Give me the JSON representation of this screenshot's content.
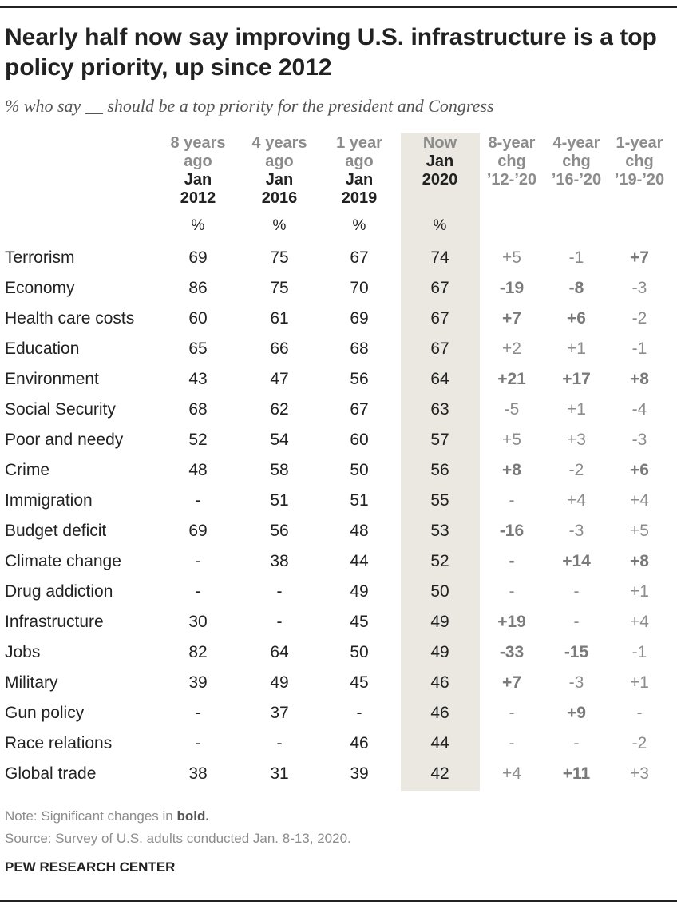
{
  "title": "Nearly half now say improving U.S. infrastructure is a top policy priority, up since 2012",
  "subtitle": "% who say __ should be a top priority for the president and Congress",
  "columns": [
    {
      "gray": "8 years ago",
      "date": "Jan 2012"
    },
    {
      "gray": "4 years ago",
      "date": "Jan 2016"
    },
    {
      "gray": "1 year ago",
      "date": "Jan 2019"
    },
    {
      "gray": "Now",
      "date": "Jan 2020"
    },
    {
      "gray": "8-year chg ’12-’20",
      "date": ""
    },
    {
      "gray": "4-year chg ’16-’20",
      "date": ""
    },
    {
      "gray": "1-year chg ’19-’20",
      "date": ""
    }
  ],
  "pct_symbol": "%",
  "chart_data": {
    "type": "table",
    "title": "Nearly half now say improving U.S. infrastructure is a top policy priority, up since 2012",
    "columns": [
      "Jan 2012",
      "Jan 2016",
      "Jan 2019",
      "Jan 2020",
      "8-year chg ’12-’20",
      "4-year chg ’16-’20",
      "1-year chg ’19-’20"
    ],
    "rows": [
      {
        "label": "Terrorism",
        "values": [
          "69",
          "75",
          "67",
          "74"
        ],
        "changes": [
          {
            "v": "+5",
            "b": false
          },
          {
            "v": "-1",
            "b": false
          },
          {
            "v": "+7",
            "b": true
          }
        ]
      },
      {
        "label": "Economy",
        "values": [
          "86",
          "75",
          "70",
          "67"
        ],
        "changes": [
          {
            "v": "-19",
            "b": true
          },
          {
            "v": "-8",
            "b": true
          },
          {
            "v": "-3",
            "b": false
          }
        ]
      },
      {
        "label": "Health care costs",
        "values": [
          "60",
          "61",
          "69",
          "67"
        ],
        "changes": [
          {
            "v": "+7",
            "b": true
          },
          {
            "v": "+6",
            "b": true
          },
          {
            "v": "-2",
            "b": false
          }
        ]
      },
      {
        "label": "Education",
        "values": [
          "65",
          "66",
          "68",
          "67"
        ],
        "changes": [
          {
            "v": "+2",
            "b": false
          },
          {
            "v": "+1",
            "b": false
          },
          {
            "v": "-1",
            "b": false
          }
        ]
      },
      {
        "label": "Environment",
        "values": [
          "43",
          "47",
          "56",
          "64"
        ],
        "changes": [
          {
            "v": "+21",
            "b": true
          },
          {
            "v": "+17",
            "b": true
          },
          {
            "v": "+8",
            "b": true
          }
        ]
      },
      {
        "label": "Social Security",
        "values": [
          "68",
          "62",
          "67",
          "63"
        ],
        "changes": [
          {
            "v": "-5",
            "b": false
          },
          {
            "v": "+1",
            "b": false
          },
          {
            "v": "-4",
            "b": false
          }
        ]
      },
      {
        "label": "Poor and needy",
        "values": [
          "52",
          "54",
          "60",
          "57"
        ],
        "changes": [
          {
            "v": "+5",
            "b": false
          },
          {
            "v": "+3",
            "b": false
          },
          {
            "v": "-3",
            "b": false
          }
        ]
      },
      {
        "label": "Crime",
        "values": [
          "48",
          "58",
          "50",
          "56"
        ],
        "changes": [
          {
            "v": "+8",
            "b": true
          },
          {
            "v": "-2",
            "b": false
          },
          {
            "v": "+6",
            "b": true
          }
        ]
      },
      {
        "label": "Immigration",
        "values": [
          "-",
          "51",
          "51",
          "55"
        ],
        "changes": [
          {
            "v": "-",
            "b": false
          },
          {
            "v": "+4",
            "b": false
          },
          {
            "v": "+4",
            "b": false
          }
        ]
      },
      {
        "label": "Budget deficit",
        "values": [
          "69",
          "56",
          "48",
          "53"
        ],
        "changes": [
          {
            "v": "-16",
            "b": true
          },
          {
            "v": "-3",
            "b": false
          },
          {
            "v": "+5",
            "b": false
          }
        ]
      },
      {
        "label": "Climate change",
        "values": [
          "-",
          "38",
          "44",
          "52"
        ],
        "changes": [
          {
            "v": "-",
            "b": true
          },
          {
            "v": "+14",
            "b": true
          },
          {
            "v": "+8",
            "b": true
          }
        ]
      },
      {
        "label": "Drug addiction",
        "values": [
          "-",
          "-",
          "49",
          "50"
        ],
        "changes": [
          {
            "v": "-",
            "b": false
          },
          {
            "v": "-",
            "b": false
          },
          {
            "v": "+1",
            "b": false
          }
        ]
      },
      {
        "label": "Infrastructure",
        "values": [
          "30",
          "-",
          "45",
          "49"
        ],
        "changes": [
          {
            "v": "+19",
            "b": true
          },
          {
            "v": "-",
            "b": false
          },
          {
            "v": "+4",
            "b": false
          }
        ]
      },
      {
        "label": "Jobs",
        "values": [
          "82",
          "64",
          "50",
          "49"
        ],
        "changes": [
          {
            "v": "-33",
            "b": true
          },
          {
            "v": "-15",
            "b": true
          },
          {
            "v": "-1",
            "b": false
          }
        ]
      },
      {
        "label": "Military",
        "values": [
          "39",
          "49",
          "45",
          "46"
        ],
        "changes": [
          {
            "v": "+7",
            "b": true
          },
          {
            "v": "-3",
            "b": false
          },
          {
            "v": "+1",
            "b": false
          }
        ]
      },
      {
        "label": "Gun policy",
        "values": [
          "-",
          "37",
          "-",
          "46"
        ],
        "changes": [
          {
            "v": "-",
            "b": false
          },
          {
            "v": "+9",
            "b": true
          },
          {
            "v": "-",
            "b": false
          }
        ]
      },
      {
        "label": "Race relations",
        "values": [
          "-",
          "-",
          "46",
          "44"
        ],
        "changes": [
          {
            "v": "-",
            "b": false
          },
          {
            "v": "-",
            "b": false
          },
          {
            "v": "-2",
            "b": false
          }
        ]
      },
      {
        "label": "Global trade",
        "values": [
          "38",
          "31",
          "39",
          "42"
        ],
        "changes": [
          {
            "v": "+4",
            "b": false
          },
          {
            "v": "+11",
            "b": true
          },
          {
            "v": "+3",
            "b": false
          }
        ]
      }
    ]
  },
  "footer": {
    "note_prefix": "Note: Significant changes in ",
    "note_bold": "bold.",
    "source": "Source: Survey of U.S. adults conducted Jan. 8-13, 2020.",
    "org": "PEW RESEARCH CENTER"
  },
  "colors": {
    "band": "#ebe7e1",
    "text": "#222222",
    "muted": "#8c8c8c"
  }
}
